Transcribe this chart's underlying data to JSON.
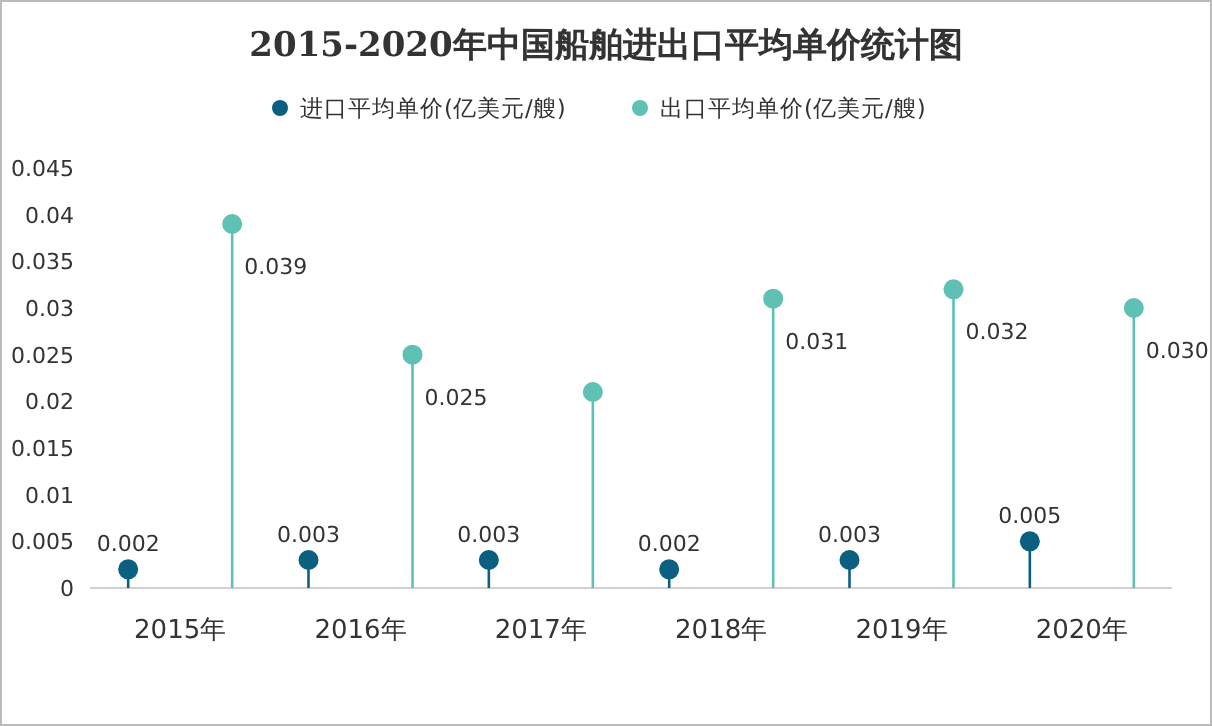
{
  "chart_data": {
    "type": "lollipop",
    "title": "2015-2020年中国船舶进出口平均单价统计图",
    "categories": [
      "2015年",
      "2016年",
      "2017年",
      "2018年",
      "2019年",
      "2020年"
    ],
    "series": [
      {
        "name": "进口平均单价(亿美元/艘)",
        "color": "#0b5f80",
        "values": [
          0.002,
          0.003,
          0.003,
          0.002,
          0.003,
          0.005
        ],
        "value_labels": [
          "0.002",
          "0.003",
          "0.003",
          "0.002",
          "0.003",
          "0.005"
        ]
      },
      {
        "name": "出口平均单价(亿美元/艘)",
        "color": "#5fc0b4",
        "values": [
          0.039,
          0.025,
          0.021,
          0.031,
          0.032,
          0.03
        ],
        "value_labels": [
          "0.039",
          "0.025",
          null,
          "0.031",
          "0.032",
          "0.030"
        ]
      }
    ],
    "ylim": [
      0,
      0.045
    ],
    "yticks": [
      0,
      0.005,
      0.01,
      0.015,
      0.02,
      0.025,
      0.03,
      0.035,
      0.04,
      0.045
    ],
    "grid": false,
    "legend": "top",
    "marker": "circle"
  }
}
